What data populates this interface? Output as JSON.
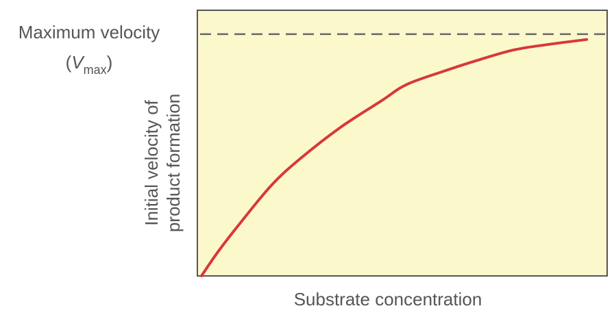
{
  "chart_data": {
    "type": "line",
    "x_label": "Substrate concentration",
    "y_label": [
      "Initial velocity of",
      "product formation"
    ],
    "vmax_annotation": {
      "text": "Maximum velocity",
      "open": "(",
      "symbol": "V",
      "subscript": "max",
      "close": ")",
      "value": 91
    },
    "x": [
      1,
      5,
      10,
      18,
      25,
      35,
      45,
      51,
      60,
      68,
      77,
      85,
      95
    ],
    "values": [
      0,
      9,
      19,
      34,
      44,
      56,
      66,
      72,
      77,
      81,
      85,
      87,
      89
    ],
    "color": "#d8383a",
    "xlim": [
      0,
      100
    ],
    "ylim": [
      0,
      100
    ]
  }
}
